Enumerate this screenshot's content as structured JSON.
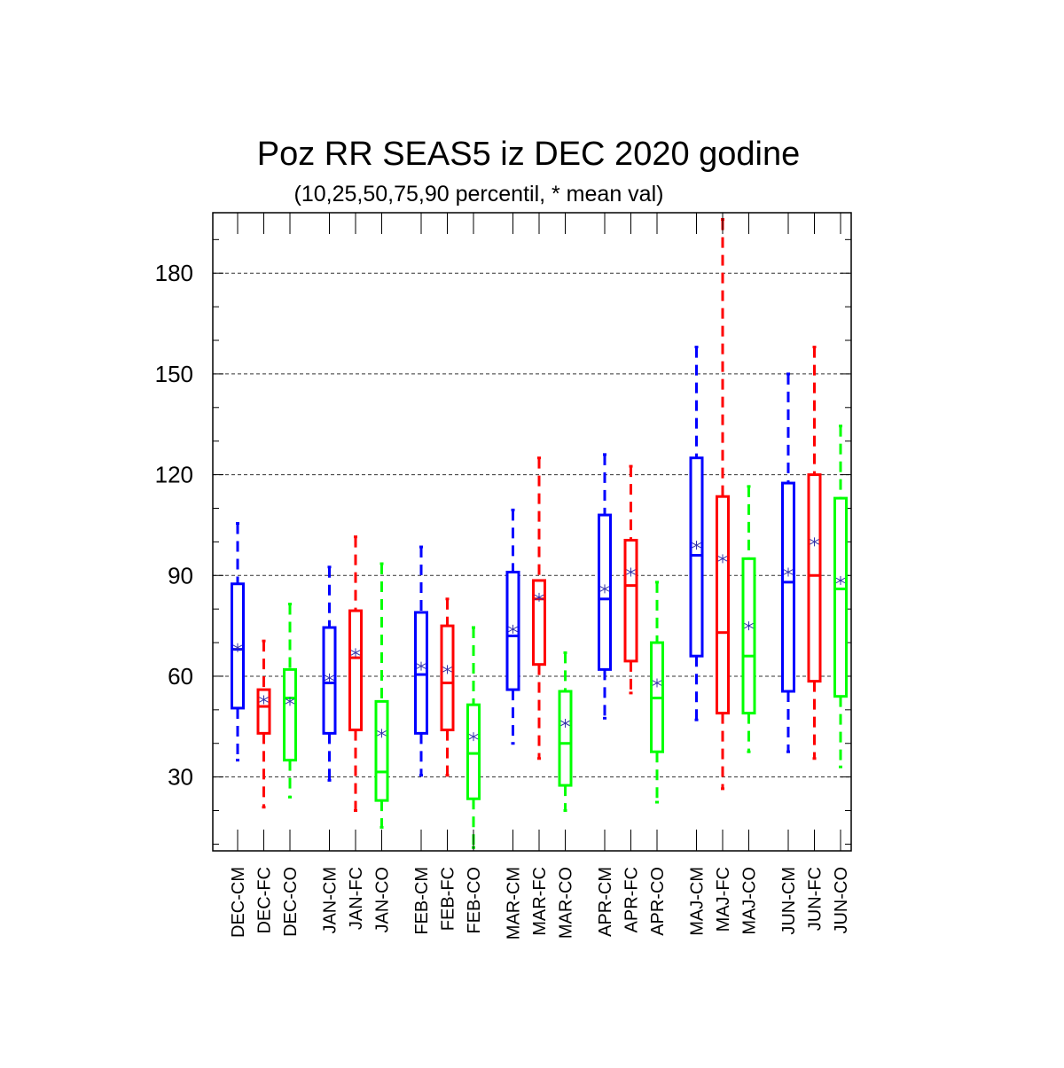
{
  "chart_data": {
    "type": "boxplot",
    "title": "Poz RR SEAS5 iz DEC 2020 godine",
    "subtitle": "(10,25,50,75,90 percentil, * mean val)",
    "ylim": [
      8,
      198
    ],
    "yticks": [
      30,
      60,
      90,
      120,
      150,
      180
    ],
    "yticks_minor_step": 10,
    "grid": "horizontal dashed at major ticks",
    "colors": {
      "CM": "#0000ff",
      "FC": "#ff0000",
      "CO": "#00ff00",
      "mean_marker": "#3333aa"
    },
    "groups": [
      "DEC",
      "JAN",
      "FEB",
      "MAR",
      "APR",
      "MAJ",
      "JUN"
    ],
    "boxes": [
      {
        "label": "DEC-CM",
        "kind": "CM",
        "p10": 35,
        "p25": 50.5,
        "p50": 68,
        "p75": 87.5,
        "p90": 105.5,
        "mean": 68.5
      },
      {
        "label": "DEC-FC",
        "kind": "FC",
        "p10": 21,
        "p25": 43,
        "p50": 51,
        "p75": 56,
        "p90": 70.5,
        "mean": 53
      },
      {
        "label": "DEC-CO",
        "kind": "CO",
        "p10": 24,
        "p25": 35,
        "p50": 53.5,
        "p75": 62,
        "p90": 81.5,
        "mean": 52.5
      },
      {
        "label": "JAN-CM",
        "kind": "CM",
        "p10": 29,
        "p25": 43,
        "p50": 58,
        "p75": 74.5,
        "p90": 92.5,
        "mean": 59.5
      },
      {
        "label": "JAN-FC",
        "kind": "FC",
        "p10": 20,
        "p25": 44,
        "p50": 65.5,
        "p75": 79.5,
        "p90": 101.5,
        "mean": 67
      },
      {
        "label": "JAN-CO",
        "kind": "CO",
        "p10": 15,
        "p25": 23,
        "p50": 31.5,
        "p75": 52.5,
        "p90": 93.5,
        "mean": 43
      },
      {
        "label": "FEB-CM",
        "kind": "CM",
        "p10": 30.5,
        "p25": 43,
        "p50": 60.5,
        "p75": 79,
        "p90": 98.5,
        "mean": 63
      },
      {
        "label": "FEB-FC",
        "kind": "FC",
        "p10": 30.5,
        "p25": 44,
        "p50": 58,
        "p75": 75,
        "p90": 83,
        "mean": 62
      },
      {
        "label": "FEB-CO",
        "kind": "CO",
        "p10": 9,
        "p25": 23.5,
        "p50": 37,
        "p75": 51.5,
        "p90": 74.5,
        "mean": 42
      },
      {
        "label": "MAR-CM",
        "kind": "CM",
        "p10": 40,
        "p25": 56,
        "p50": 72,
        "p75": 91,
        "p90": 109.5,
        "mean": 74
      },
      {
        "label": "MAR-FC",
        "kind": "FC",
        "p10": 35.5,
        "p25": 63.5,
        "p50": 83,
        "p75": 88.5,
        "p90": 125,
        "mean": 83.5
      },
      {
        "label": "MAR-CO",
        "kind": "CO",
        "p10": 20,
        "p25": 27.5,
        "p50": 40,
        "p75": 55.5,
        "p90": 67,
        "mean": 46
      },
      {
        "label": "APR-CM",
        "kind": "CM",
        "p10": 47.5,
        "p25": 62,
        "p50": 83,
        "p75": 108,
        "p90": 126,
        "mean": 86
      },
      {
        "label": "APR-FC",
        "kind": "FC",
        "p10": 55,
        "p25": 64.5,
        "p50": 87,
        "p75": 100.5,
        "p90": 122.5,
        "mean": 91
      },
      {
        "label": "APR-CO",
        "kind": "CO",
        "p10": 22.5,
        "p25": 37.5,
        "p50": 53.5,
        "p75": 70,
        "p90": 88,
        "mean": 58
      },
      {
        "label": "MAJ-CM",
        "kind": "CM",
        "p10": 47,
        "p25": 66,
        "p50": 96,
        "p75": 125,
        "p90": 158,
        "mean": 99
      },
      {
        "label": "MAJ-FC",
        "kind": "FC",
        "p10": 26.5,
        "p25": 49,
        "p50": 73,
        "p75": 113.5,
        "p90": 196,
        "mean": 95
      },
      {
        "label": "MAJ-CO",
        "kind": "CO",
        "p10": 37.5,
        "p25": 49,
        "p50": 66,
        "p75": 95,
        "p90": 116.5,
        "mean": 75
      },
      {
        "label": "JUN-CM",
        "kind": "CM",
        "p10": 37.5,
        "p25": 55.5,
        "p50": 88,
        "p75": 117.5,
        "p90": 150,
        "mean": 91
      },
      {
        "label": "JUN-FC",
        "kind": "FC",
        "p10": 35.5,
        "p25": 58.5,
        "p50": 90,
        "p75": 120,
        "p90": 158,
        "mean": 100
      },
      {
        "label": "JUN-CO",
        "kind": "CO",
        "p10": 33,
        "p25": 54,
        "p50": 86,
        "p75": 113,
        "p90": 134.5,
        "mean": 88.5
      }
    ]
  }
}
